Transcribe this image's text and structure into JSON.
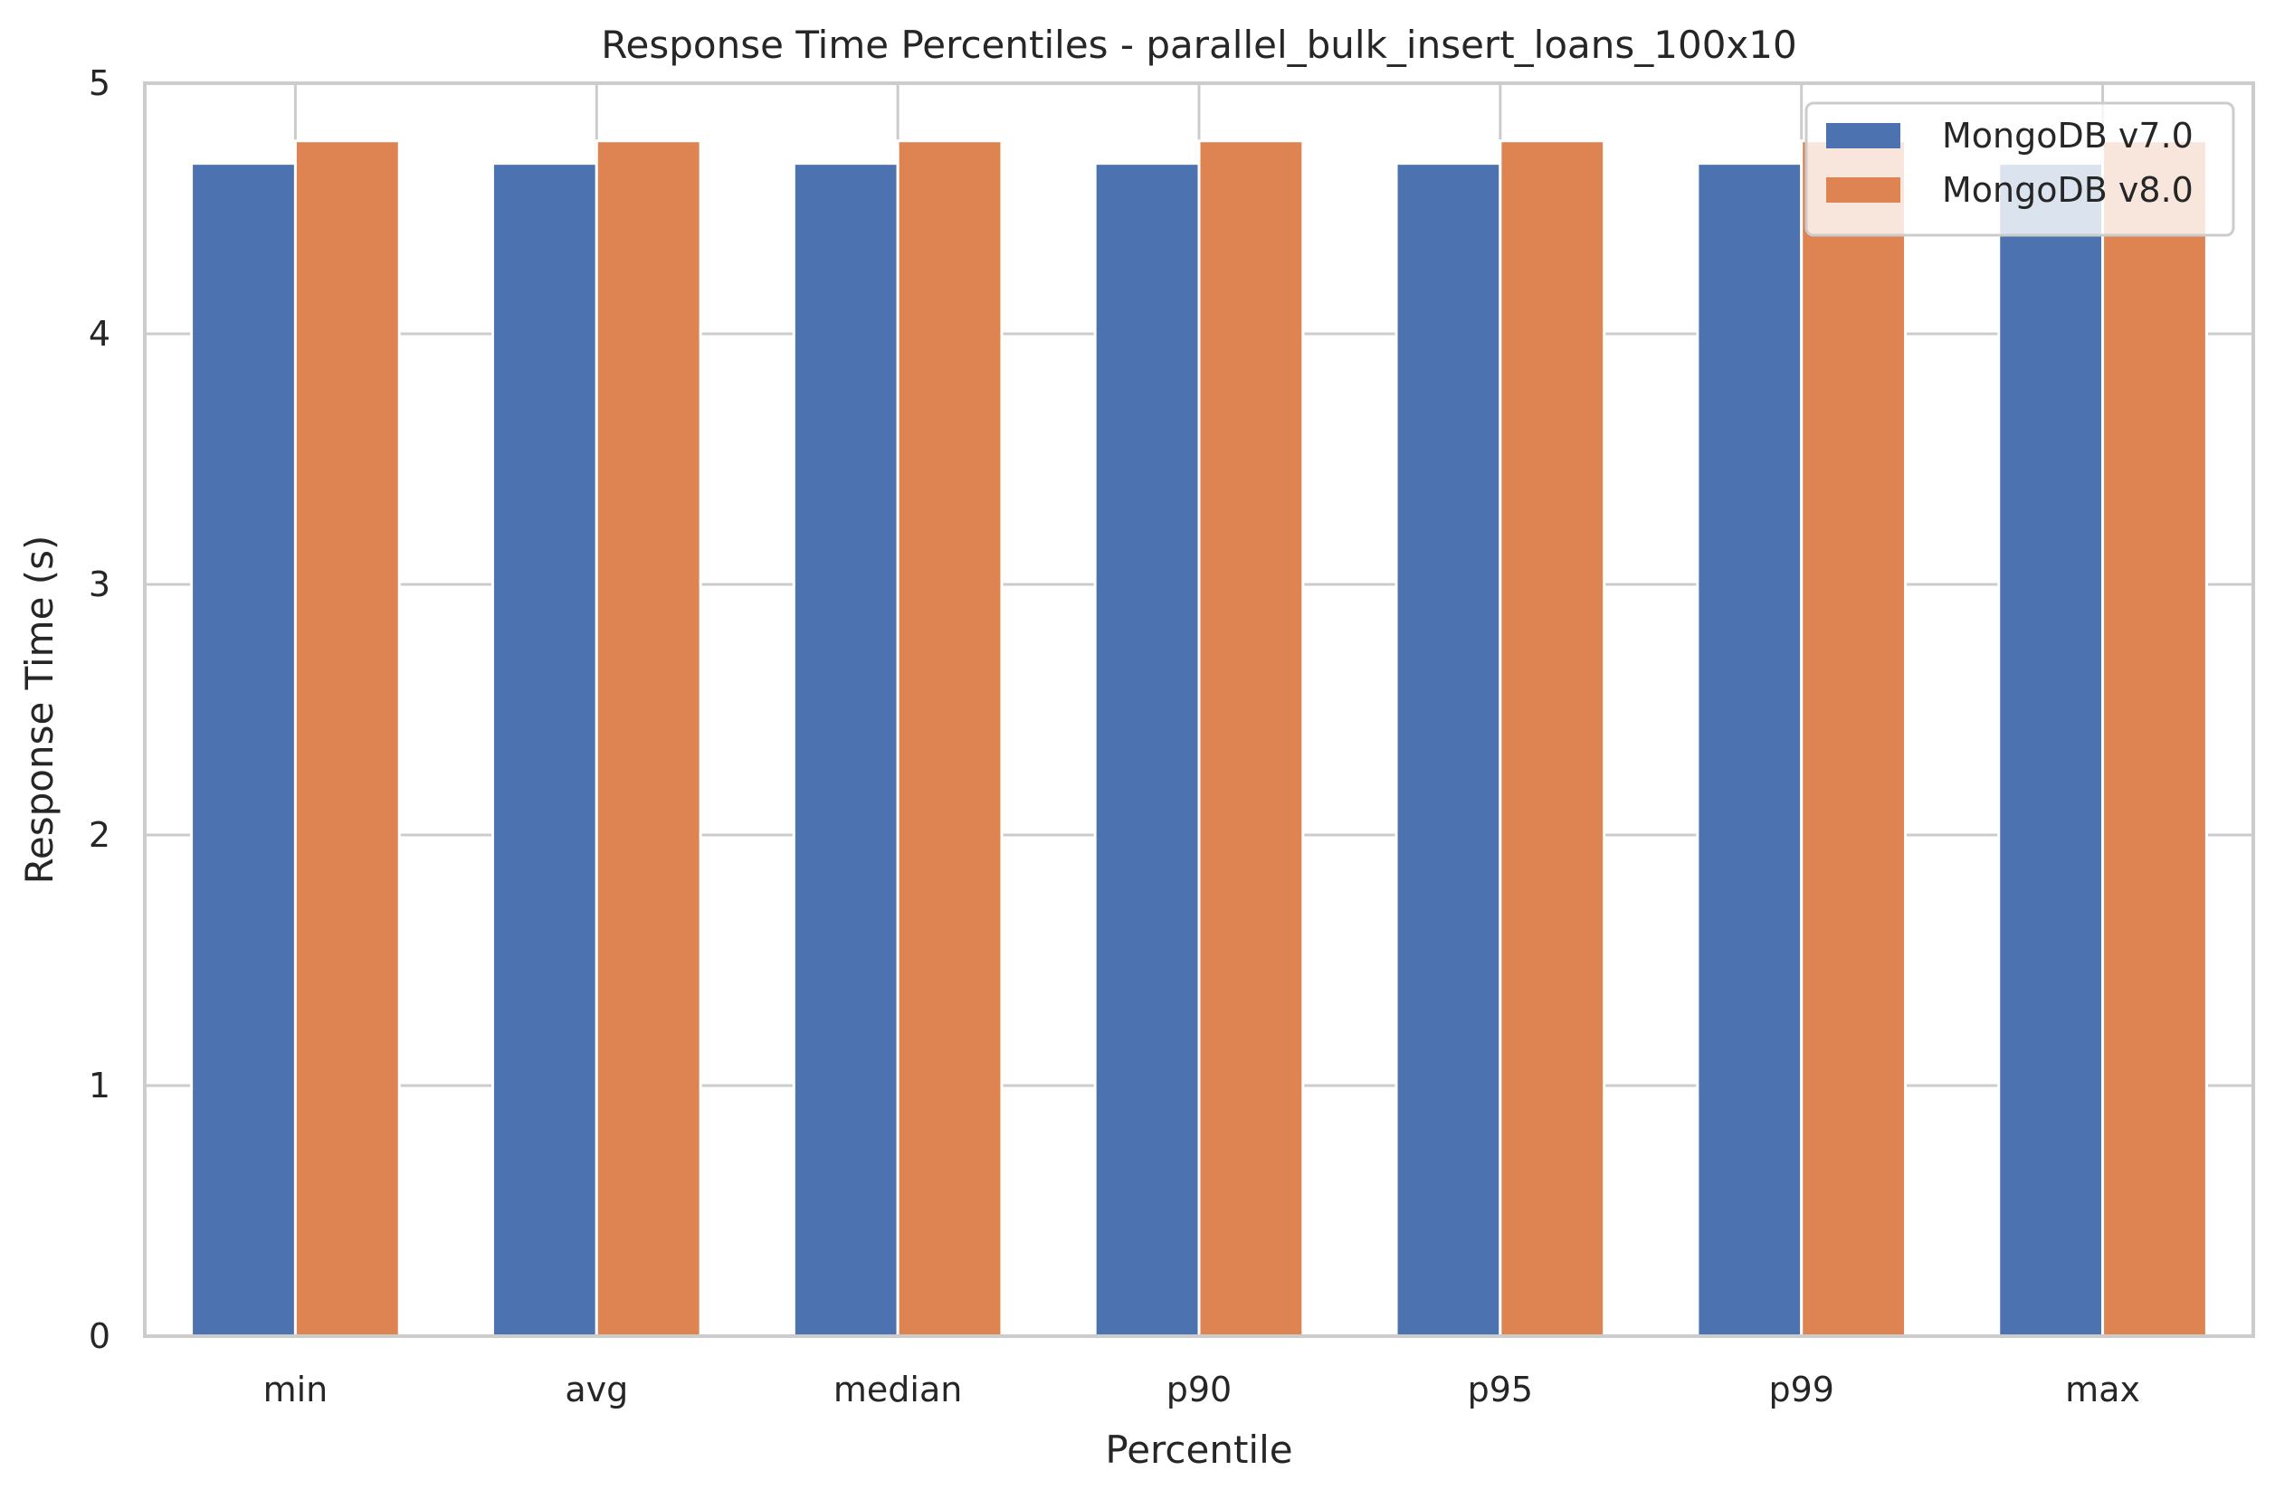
{
  "chart_data": {
    "type": "bar",
    "title": "Response Time Percentiles - parallel_bulk_insert_loans_100x10",
    "xlabel": "Percentile",
    "ylabel": "Response Time (s)",
    "categories": [
      "min",
      "avg",
      "median",
      "p90",
      "p95",
      "p99",
      "max"
    ],
    "series": [
      {
        "name": "MongoDB v7.0",
        "color": "#4c72b0",
        "values": [
          4.68,
          4.68,
          4.68,
          4.68,
          4.68,
          4.68,
          4.68
        ]
      },
      {
        "name": "MongoDB v8.0",
        "color": "#dd8452",
        "values": [
          4.77,
          4.77,
          4.77,
          4.77,
          4.77,
          4.77,
          4.77
        ]
      }
    ],
    "ylim": [
      0,
      5
    ],
    "yticks": [
      "0",
      "1",
      "2",
      "3",
      "4",
      "5"
    ],
    "grid": true,
    "legend_position": "top-right"
  }
}
